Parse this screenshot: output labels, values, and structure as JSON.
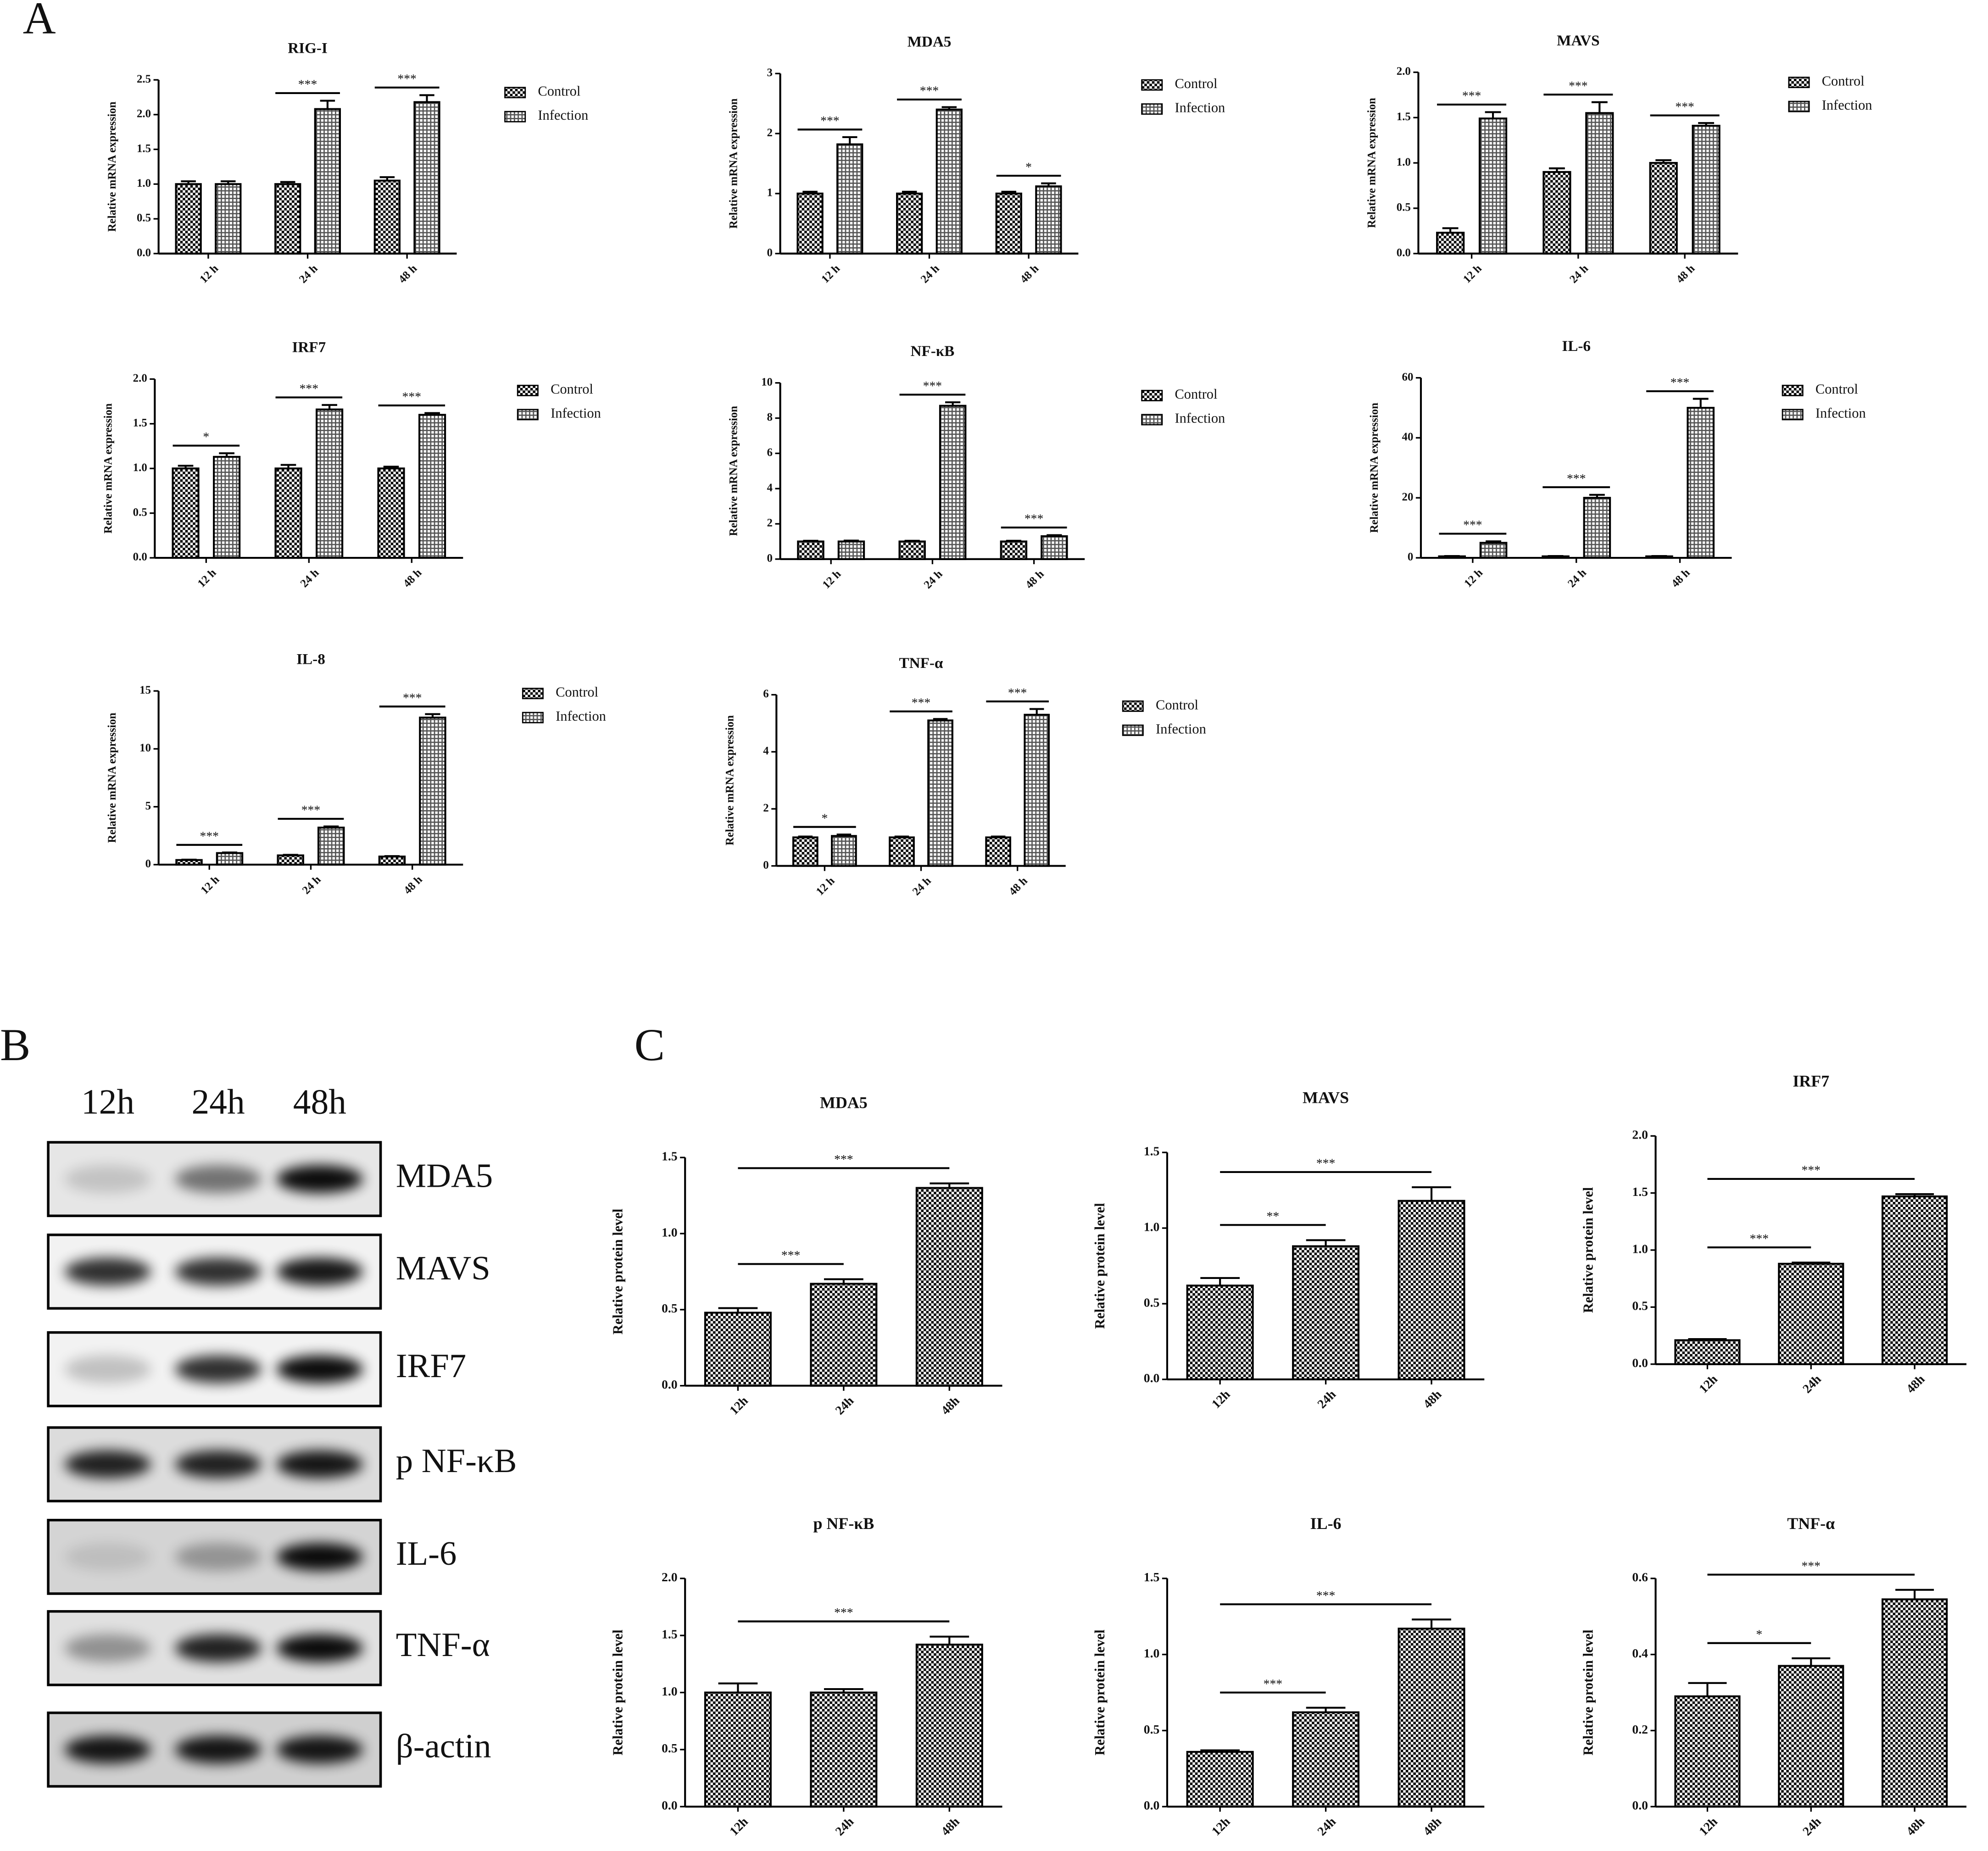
{
  "panel_labels": [
    "A",
    "B",
    "C"
  ],
  "blot": {
    "lanes": [
      "12h",
      "24h",
      "48h"
    ],
    "bands": [
      "MDA5",
      "MAVS",
      "IRF7",
      "p NF-κB",
      "IL-6",
      "TNF-α",
      "β-actin"
    ]
  },
  "chart_data": [
    {
      "type": "bar",
      "title": "RIG-I",
      "ylabel": "Relative mRNA expression",
      "categories": [
        "12 h",
        "24 h",
        "48 h"
      ],
      "series": [
        {
          "name": "Control",
          "color": "#000000",
          "pattern": "checker",
          "values": [
            1.0,
            1.0,
            1.05
          ],
          "errors": [
            0.04,
            0.03,
            0.05
          ]
        },
        {
          "name": "Infection",
          "color": "#000000",
          "pattern": "grid",
          "values": [
            1.0,
            2.08,
            2.18
          ],
          "errors": [
            0.04,
            0.12,
            0.1
          ]
        }
      ],
      "significance": [
        null,
        "***",
        "***"
      ],
      "ylim": [
        0,
        2.5
      ],
      "yticks": [
        {
          "value": 0,
          "label": "0.0"
        },
        0.5,
        {
          "value": 1,
          "label": "1.0"
        },
        1.5,
        {
          "value": 2,
          "label": "2.0"
        },
        2.5
      ]
    },
    {
      "type": "bar",
      "title": "MDA5",
      "ylabel": "Relative mRNA expression",
      "categories": [
        "12 h",
        "24 h",
        "48 h"
      ],
      "series": [
        {
          "name": "Control",
          "color": "#000000",
          "pattern": "checker",
          "values": [
            1.0,
            1.0,
            1.0
          ],
          "errors": [
            0.03,
            0.03,
            0.03
          ]
        },
        {
          "name": "Infection",
          "color": "#000000",
          "pattern": "grid",
          "values": [
            1.82,
            2.4,
            1.12
          ],
          "errors": [
            0.12,
            0.04,
            0.05
          ]
        }
      ],
      "significance": [
        "***",
        "***",
        "*"
      ],
      "ylim": [
        0,
        3
      ],
      "yticks": [
        0,
        1,
        2,
        3
      ]
    },
    {
      "type": "bar",
      "title": "MAVS",
      "ylabel": "Relative mRNA expression",
      "categories": [
        "12 h",
        "24 h",
        "48 h"
      ],
      "series": [
        {
          "name": "Control",
          "color": "#000000",
          "pattern": "checker",
          "values": [
            0.23,
            0.9,
            1.0
          ],
          "errors": [
            0.05,
            0.04,
            0.03
          ]
        },
        {
          "name": "Infection",
          "color": "#000000",
          "pattern": "grid",
          "values": [
            1.49,
            1.55,
            1.41
          ],
          "errors": [
            0.07,
            0.12,
            0.03
          ]
        }
      ],
      "significance": [
        "***",
        "***",
        "***"
      ],
      "ylim": [
        0,
        2
      ],
      "yticks": [
        {
          "value": 0,
          "label": "0.0"
        },
        0.5,
        {
          "value": 1,
          "label": "1.0"
        },
        1.5,
        {
          "value": 2,
          "label": "2.0"
        }
      ]
    },
    {
      "type": "bar",
      "title": "IRF7",
      "ylabel": "Relative mRNA expression",
      "categories": [
        "12 h",
        "24 h",
        "48 h"
      ],
      "series": [
        {
          "name": "Control",
          "color": "#000000",
          "pattern": "checker",
          "values": [
            1.0,
            1.0,
            1.0
          ],
          "errors": [
            0.03,
            0.04,
            0.02
          ]
        },
        {
          "name": "Infection",
          "color": "#000000",
          "pattern": "grid",
          "values": [
            1.13,
            1.66,
            1.6
          ],
          "errors": [
            0.04,
            0.05,
            0.02
          ]
        }
      ],
      "significance": [
        "*",
        "***",
        "***"
      ],
      "ylim": [
        0,
        2
      ],
      "yticks": [
        {
          "value": 0,
          "label": "0.0"
        },
        0.5,
        {
          "value": 1,
          "label": "1.0"
        },
        1.5,
        {
          "value": 2,
          "label": "2.0"
        }
      ]
    },
    {
      "type": "bar",
      "title": "NF-κB",
      "ylabel": "Relative mRNA expression",
      "categories": [
        "12 h",
        "24 h",
        "48 h"
      ],
      "series": [
        {
          "name": "Control",
          "color": "#000000",
          "pattern": "checker",
          "values": [
            1.0,
            1.0,
            1.0
          ],
          "errors": [
            0.04,
            0.04,
            0.04
          ]
        },
        {
          "name": "Infection",
          "color": "#000000",
          "pattern": "grid",
          "values": [
            1.0,
            8.7,
            1.3
          ],
          "errors": [
            0.05,
            0.2,
            0.06
          ]
        }
      ],
      "significance": [
        null,
        "***",
        "***"
      ],
      "ylim": [
        0,
        10
      ],
      "yticks": [
        0,
        2,
        4,
        6,
        8,
        10
      ]
    },
    {
      "type": "bar",
      "title": "IL-6",
      "ylabel": "Relative mRNA expression",
      "categories": [
        "12 h",
        "24 h",
        "48 h"
      ],
      "series": [
        {
          "name": "Control",
          "color": "#000000",
          "pattern": "checker",
          "values": [
            0.5,
            0.5,
            0.5
          ],
          "errors": [
            0.1,
            0.1,
            0.1
          ]
        },
        {
          "name": "Infection",
          "color": "#000000",
          "pattern": "grid",
          "values": [
            5,
            20,
            50
          ],
          "errors": [
            0.5,
            1,
            3
          ]
        }
      ],
      "significance": [
        "***",
        "***",
        "***"
      ],
      "ylim": [
        0,
        60
      ],
      "yticks": [
        0,
        20,
        40,
        60
      ]
    },
    {
      "type": "bar",
      "title": "IL-8",
      "ylabel": "Relative mRNA expression",
      "categories": [
        "12 h",
        "24 h",
        "48 h"
      ],
      "series": [
        {
          "name": "Control",
          "color": "#000000",
          "pattern": "checker",
          "values": [
            0.4,
            0.8,
            0.7
          ],
          "errors": [
            0.03,
            0.05,
            0.04
          ]
        },
        {
          "name": "Infection",
          "color": "#000000",
          "pattern": "grid",
          "values": [
            1.0,
            3.2,
            12.7
          ],
          "errors": [
            0.05,
            0.1,
            0.3
          ]
        }
      ],
      "significance": [
        "***",
        "***",
        "***"
      ],
      "ylim": [
        0,
        15
      ],
      "yticks": [
        0,
        5,
        10,
        15
      ]
    },
    {
      "type": "bar",
      "title": "TNF-α",
      "ylabel": "Relative mRNA expression",
      "categories": [
        "12 h",
        "24 h",
        "48 h"
      ],
      "series": [
        {
          "name": "Control",
          "color": "#000000",
          "pattern": "checker",
          "values": [
            1.0,
            1.0,
            1.0
          ],
          "errors": [
            0.03,
            0.03,
            0.03
          ]
        },
        {
          "name": "Infection",
          "color": "#000000",
          "pattern": "grid",
          "values": [
            1.05,
            5.1,
            5.3
          ],
          "errors": [
            0.05,
            0.05,
            0.2
          ]
        }
      ],
      "significance": [
        "*",
        "***",
        "***"
      ],
      "ylim": [
        0,
        6
      ],
      "yticks": [
        0,
        2,
        4,
        6
      ]
    },
    {
      "type": "bar",
      "title": "MDA5",
      "ylabel": "Relative protein level",
      "categories": [
        "12h",
        "24h",
        "48h"
      ],
      "color": "#000000",
      "pattern": "checker",
      "values": [
        0.48,
        0.67,
        1.3
      ],
      "errors": [
        0.03,
        0.03,
        0.03
      ],
      "significance": [
        null,
        "***",
        "***"
      ],
      "ylim": [
        0,
        1.5
      ],
      "yticks": [
        {
          "value": 0,
          "label": "0.0"
        },
        0.5,
        {
          "value": 1,
          "label": "1.0"
        },
        1.5
      ]
    },
    {
      "type": "bar",
      "title": "MAVS",
      "ylabel": "Relative protein level",
      "categories": [
        "12h",
        "24h",
        "48h"
      ],
      "color": "#000000",
      "pattern": "checker",
      "values": [
        0.62,
        0.88,
        1.18
      ],
      "errors": [
        0.05,
        0.04,
        0.09
      ],
      "significance": [
        null,
        "**",
        "***"
      ],
      "ylim": [
        0,
        1.5
      ],
      "yticks": [
        {
          "value": 0,
          "label": "0.0"
        },
        0.5,
        {
          "value": 1,
          "label": "1.0"
        },
        1.5
      ]
    },
    {
      "type": "bar",
      "title": "IRF7",
      "ylabel": "Relative protein level",
      "categories": [
        "12h",
        "24h",
        "48h"
      ],
      "color": "#000000",
      "pattern": "checker",
      "values": [
        0.21,
        0.88,
        1.47
      ],
      "errors": [
        0.01,
        0.01,
        0.02
      ],
      "significance": [
        null,
        "***",
        "***"
      ],
      "ylim": [
        0,
        2
      ],
      "yticks": [
        {
          "value": 0,
          "label": "0.0"
        },
        0.5,
        {
          "value": 1,
          "label": "1.0"
        },
        1.5,
        {
          "value": 2,
          "label": "2.0"
        }
      ]
    },
    {
      "type": "bar",
      "title": "p NF-κB",
      "ylabel": "Relative protein level",
      "categories": [
        "12h",
        "24h",
        "48h"
      ],
      "color": "#000000",
      "pattern": "checker",
      "values": [
        1.0,
        1.0,
        1.42
      ],
      "errors": [
        0.08,
        0.03,
        0.07
      ],
      "significance": [
        null,
        null,
        "***"
      ],
      "ylim": [
        0,
        2
      ],
      "yticks": [
        {
          "value": 0,
          "label": "0.0"
        },
        0.5,
        {
          "value": 1,
          "label": "1.0"
        },
        1.5,
        {
          "value": 2,
          "label": "2.0"
        }
      ]
    },
    {
      "type": "bar",
      "title": "IL-6",
      "ylabel": "Relative protein level",
      "categories": [
        "12h",
        "24h",
        "48h"
      ],
      "color": "#000000",
      "pattern": "checker",
      "values": [
        0.36,
        0.62,
        1.17
      ],
      "errors": [
        0.01,
        0.03,
        0.06
      ],
      "significance": [
        null,
        "***",
        "***"
      ],
      "ylim": [
        0,
        1.5
      ],
      "yticks": [
        {
          "value": 0,
          "label": "0.0"
        },
        0.5,
        {
          "value": 1,
          "label": "1.0"
        },
        1.5
      ]
    },
    {
      "type": "bar",
      "title": "TNF-α",
      "ylabel": "Relative protein level",
      "categories": [
        "12h",
        "24h",
        "48h"
      ],
      "color": "#000000",
      "pattern": "checker",
      "values": [
        0.29,
        0.37,
        0.545
      ],
      "errors": [
        0.035,
        0.02,
        0.025
      ],
      "significance": [
        null,
        "*",
        "***"
      ],
      "ylim": [
        0,
        0.6
      ],
      "yticks": [
        {
          "value": 0,
          "label": "0.0"
        },
        0.2,
        0.4,
        0.6
      ]
    }
  ]
}
